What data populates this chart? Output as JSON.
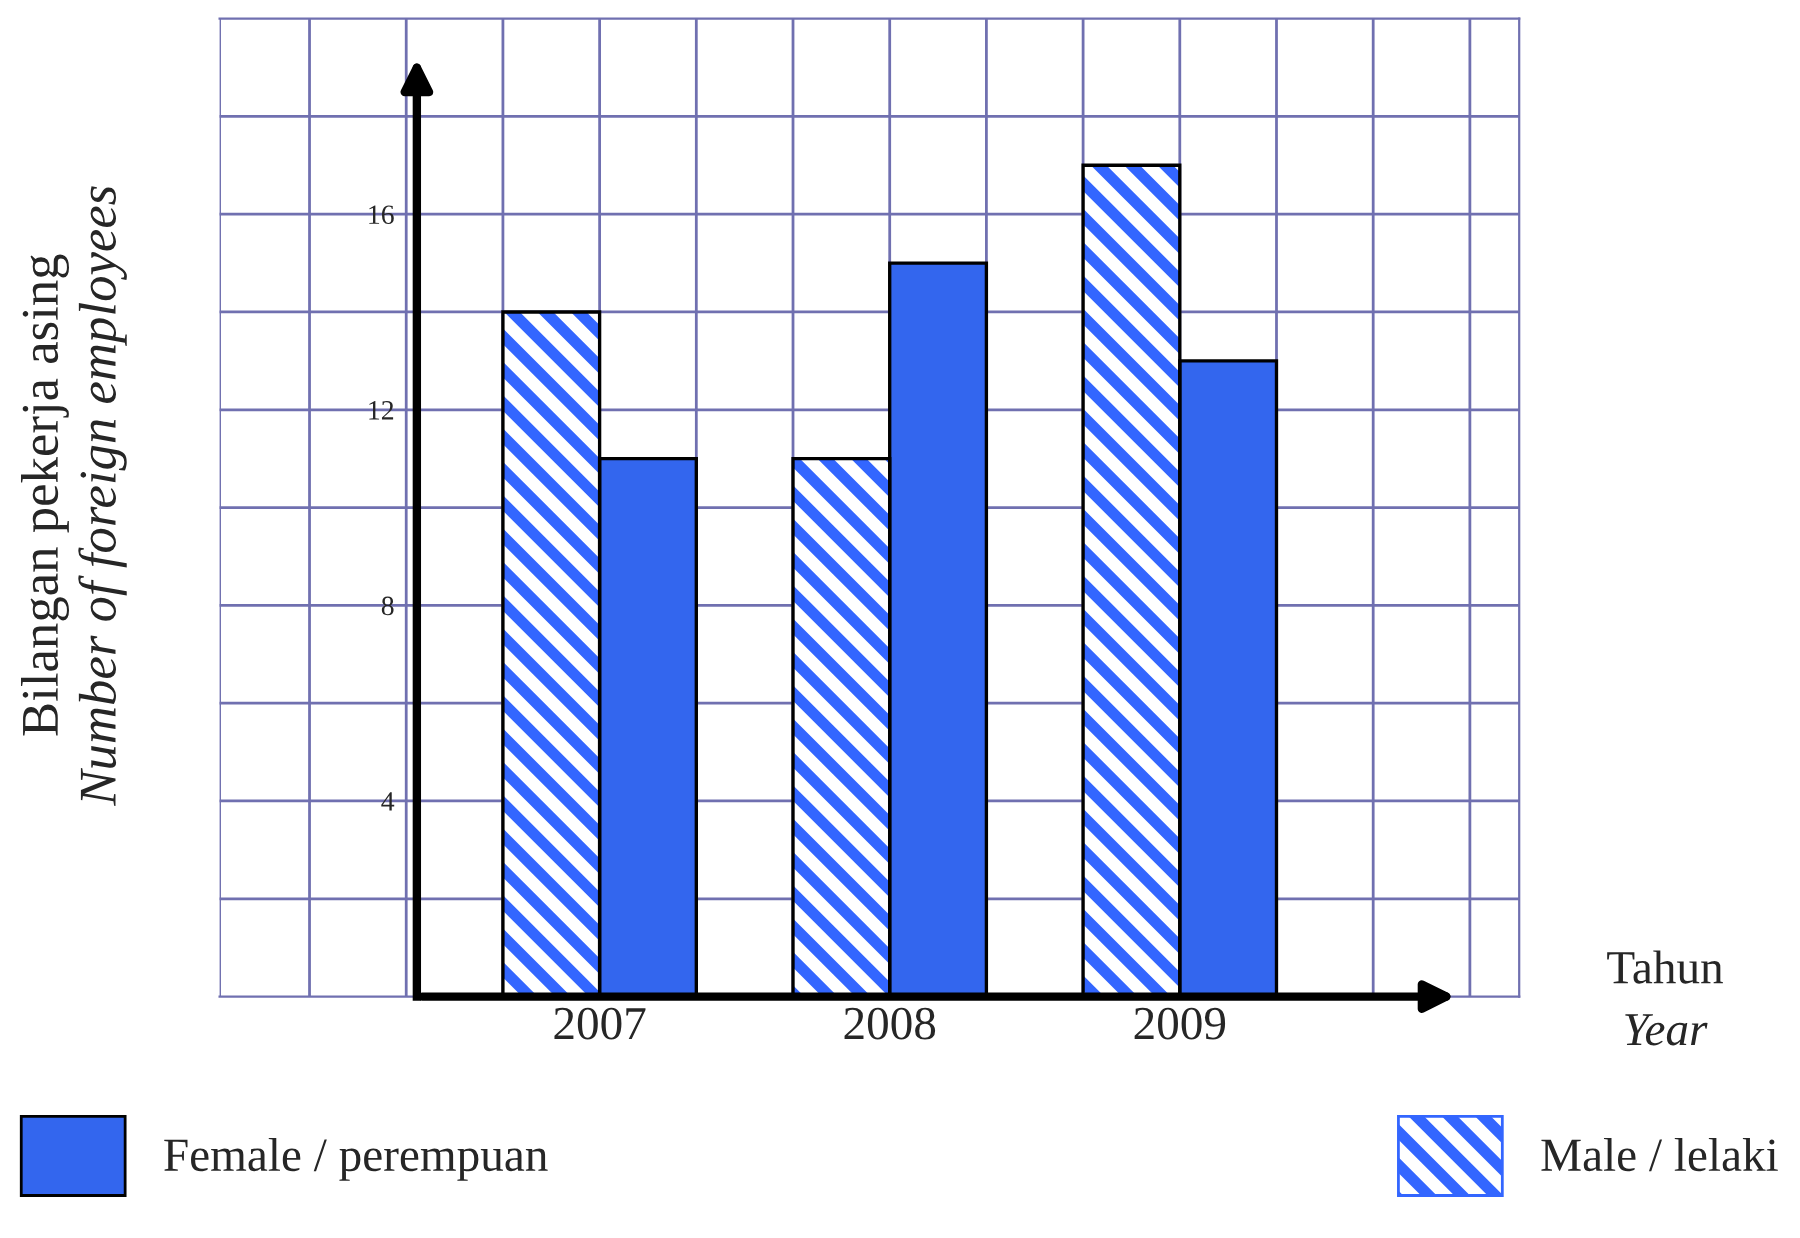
{
  "chart_data": {
    "type": "bar",
    "xlabel": "Tahun\nYear",
    "ylabel": "Bilangan pekerja asing\nNumber of foreign employees",
    "categories": [
      "2007",
      "2008",
      "2009"
    ],
    "series": [
      {
        "name": "Male / lelaki",
        "color": "#3366ff",
        "values": [
          14,
          11,
          17
        ]
      },
      {
        "name": "Female / perempuan",
        "color": "#3366ee",
        "values": [
          11,
          15,
          13
        ]
      }
    ],
    "ylim": [
      0,
      20
    ],
    "yticks": [
      {
        "value": 2,
        "label": null
      },
      4,
      {
        "value": 6,
        "label": null
      },
      8,
      {
        "value": 10,
        "label": null
      },
      12,
      {
        "value": 14,
        "label": null
      },
      16,
      {
        "value": 18,
        "label": null
      }
    ],
    "grid": true,
    "legend": "bottom"
  }
}
